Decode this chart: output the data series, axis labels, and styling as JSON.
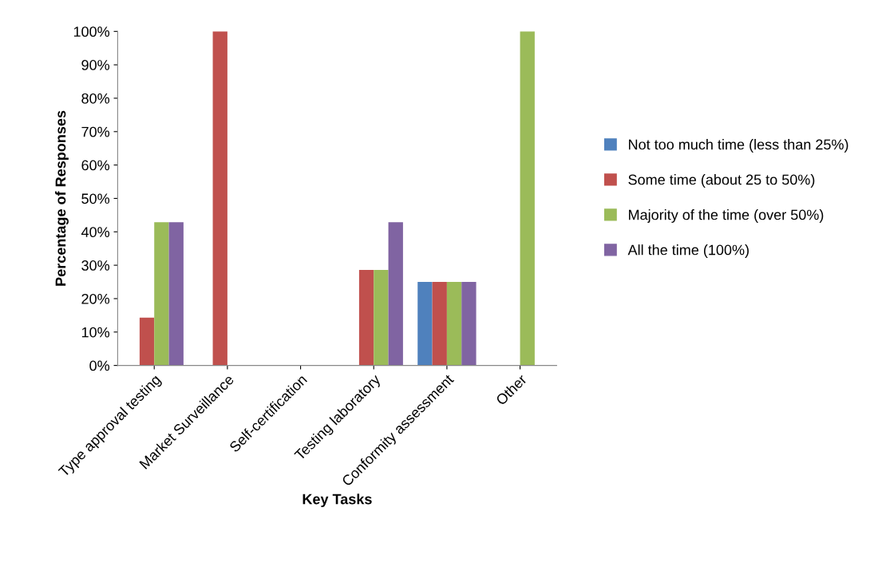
{
  "chart_data": {
    "type": "bar",
    "xlabel": "Key Tasks",
    "ylabel": "Percentage of Responses",
    "categories": [
      "Type approval testing",
      "Market Surveillance",
      "Self-certification",
      "Testing laboratory",
      "Conformity assessment",
      "Other"
    ],
    "series": [
      {
        "name": "Not too much time (less than 25%)",
        "color": "#4f81bd",
        "values": [
          0,
          0,
          0,
          0,
          25,
          0
        ]
      },
      {
        "name": "Some time (about 25 to 50%)",
        "color": "#c0504d",
        "values": [
          14.3,
          100,
          0,
          28.6,
          25,
          0
        ]
      },
      {
        "name": "Majority of the time (over 50%)",
        "color": "#9bbb59",
        "values": [
          42.9,
          0,
          0,
          28.6,
          25,
          100
        ]
      },
      {
        "name": "All the time (100%)",
        "color": "#8064a2",
        "values": [
          42.9,
          0,
          0,
          42.9,
          25,
          0
        ]
      }
    ],
    "ylim": [
      0,
      100
    ],
    "yticks": [
      {
        "value": 0,
        "label": "0%"
      },
      {
        "value": 10,
        "label": "10%"
      },
      {
        "value": 20,
        "label": "20%"
      },
      {
        "value": 30,
        "label": "30%"
      },
      {
        "value": 40,
        "label": "40%"
      },
      {
        "value": 50,
        "label": "50%"
      },
      {
        "value": 60,
        "label": "60%"
      },
      {
        "value": 70,
        "label": "70%"
      },
      {
        "value": 80,
        "label": "80%"
      },
      {
        "value": 90,
        "label": "90%"
      },
      {
        "value": 100,
        "label": "100%"
      }
    ],
    "grid": false,
    "legend": "right"
  }
}
